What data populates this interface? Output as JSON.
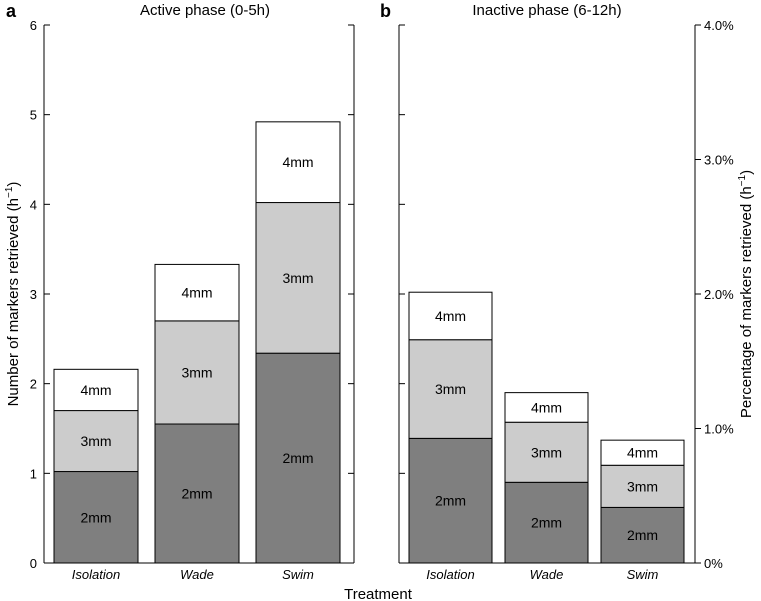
{
  "chart_data": [
    {
      "type": "bar",
      "stacked": true,
      "panel": "a",
      "title": "Active phase (0-5h)",
      "categories": [
        "Isolation",
        "Wade",
        "Swim"
      ],
      "series": [
        {
          "name": "2mm",
          "color": "#7f7f7f",
          "values": [
            1.02,
            1.55,
            2.34
          ]
        },
        {
          "name": "3mm",
          "color": "#cccccc",
          "values": [
            0.68,
            1.15,
            1.68
          ]
        },
        {
          "name": "4mm",
          "color": "#ffffff",
          "values": [
            0.46,
            0.63,
            0.9
          ]
        }
      ],
      "ylabel": "Number of markers retrieved (h",
      "ylabel_sup": "−1",
      "ylabel_close": ")",
      "ylim": [
        0,
        6
      ],
      "yticks": [
        "0",
        "1",
        "2",
        "3",
        "4",
        "5",
        "6"
      ]
    },
    {
      "type": "bar",
      "stacked": true,
      "panel": "b",
      "title": "Inactive phase (6-12h)",
      "categories": [
        "Isolation",
        "Wade",
        "Swim"
      ],
      "series": [
        {
          "name": "2mm",
          "color": "#7f7f7f",
          "values": [
            1.39,
            0.9,
            0.62
          ]
        },
        {
          "name": "3mm",
          "color": "#cccccc",
          "values": [
            1.1,
            0.67,
            0.47
          ]
        },
        {
          "name": "4mm",
          "color": "#ffffff",
          "values": [
            0.53,
            0.33,
            0.28
          ]
        }
      ],
      "ylabel": "Percentage of markers retrieved (h",
      "ylabel_sup": "−1",
      "ylabel_close": ")",
      "ylim": [
        0,
        6
      ],
      "y2ticks": [
        "0%",
        "1.0%",
        "2.0%",
        "3.0%",
        "4.0%"
      ],
      "y2lim_percent": [
        0,
        4
      ]
    }
  ],
  "xlabel": "Treatment"
}
